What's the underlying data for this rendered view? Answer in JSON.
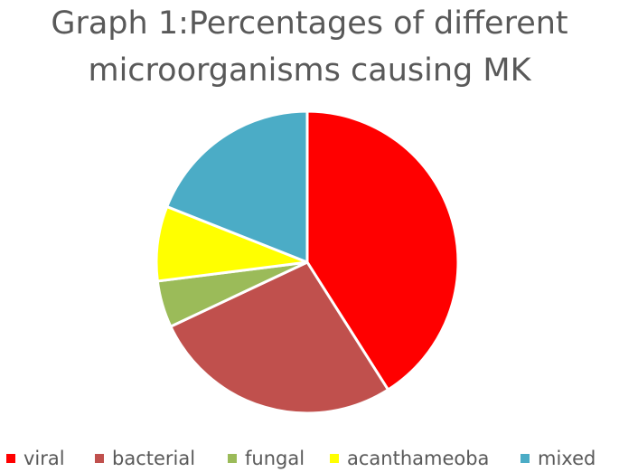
{
  "chart_data": {
    "type": "pie",
    "title_lines": [
      "Graph 1:Percentages of different",
      "microorganisms causing MK"
    ],
    "categories": [
      "viral",
      "bacterial",
      "fungal",
      "acanthameoba",
      "mixed"
    ],
    "values": [
      41,
      27,
      5,
      8,
      19
    ],
    "unit": "%",
    "colors": [
      "#ff0000",
      "#c0504d",
      "#9bbb59",
      "#ffff00",
      "#4bacc6"
    ],
    "start_angle_deg": 0,
    "direction": "clockwise",
    "legend_position": "bottom"
  }
}
